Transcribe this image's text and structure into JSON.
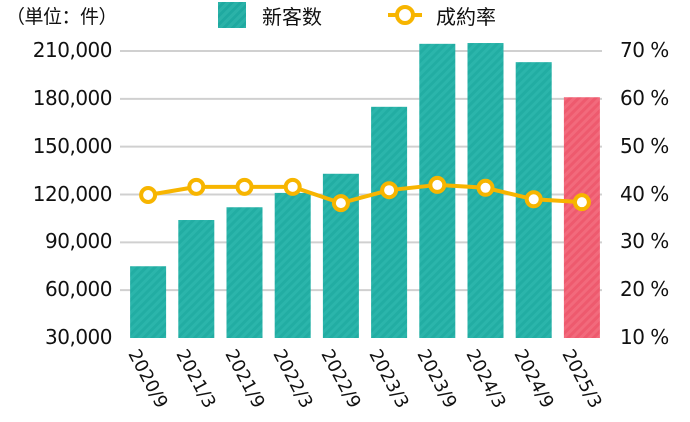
{
  "chart_data": {
    "type": "bar+line",
    "title": "",
    "unit_label": "（単位：件）",
    "categories": [
      "2020/9",
      "2021/3",
      "2021/9",
      "2022/3",
      "2022/9",
      "2023/3",
      "2023/9",
      "2024/3",
      "2024/9",
      "2025/3"
    ],
    "series": [
      {
        "name": "新客数",
        "type": "bar",
        "axis": "left",
        "values": [
          75000,
          104000,
          112000,
          121000,
          133000,
          175000,
          214500,
          215000,
          203000,
          181000
        ],
        "color": "#20aaa0",
        "highlight_color": "#ee5a6e",
        "highlight_index": 9
      },
      {
        "name": "成約率",
        "type": "line",
        "axis": "right",
        "values": [
          39.9,
          41.6,
          41.6,
          41.6,
          38.2,
          40.9,
          42.0,
          41.4,
          39.0,
          38.4
        ],
        "unit": "%",
        "color": "#f7b500"
      }
    ],
    "left_axis": {
      "ticks": [
        "30,000",
        "60,000",
        "90,000",
        "120,000",
        "150,000",
        "180,000",
        "210,000"
      ],
      "tick_values": [
        30000,
        60000,
        90000,
        120000,
        150000,
        180000,
        210000
      ],
      "ylim": [
        30000,
        210000
      ]
    },
    "right_axis": {
      "ticks": [
        "10 %",
        "20 %",
        "30 %",
        "40 %",
        "50 %",
        "60 %",
        "70 %"
      ],
      "tick_values": [
        10,
        20,
        30,
        40,
        50,
        60,
        70
      ],
      "ylim": [
        10,
        70
      ]
    },
    "grid": true,
    "legend_position": "top",
    "xlabel": "",
    "ylabel": ""
  },
  "legend": {
    "bar_label": "新客数",
    "line_label": "成約率"
  },
  "colors": {
    "bar": "#20aaa0",
    "bar_highlight": "#ee5a6e",
    "line": "#f7b500",
    "grid": "#d0d0d0"
  }
}
